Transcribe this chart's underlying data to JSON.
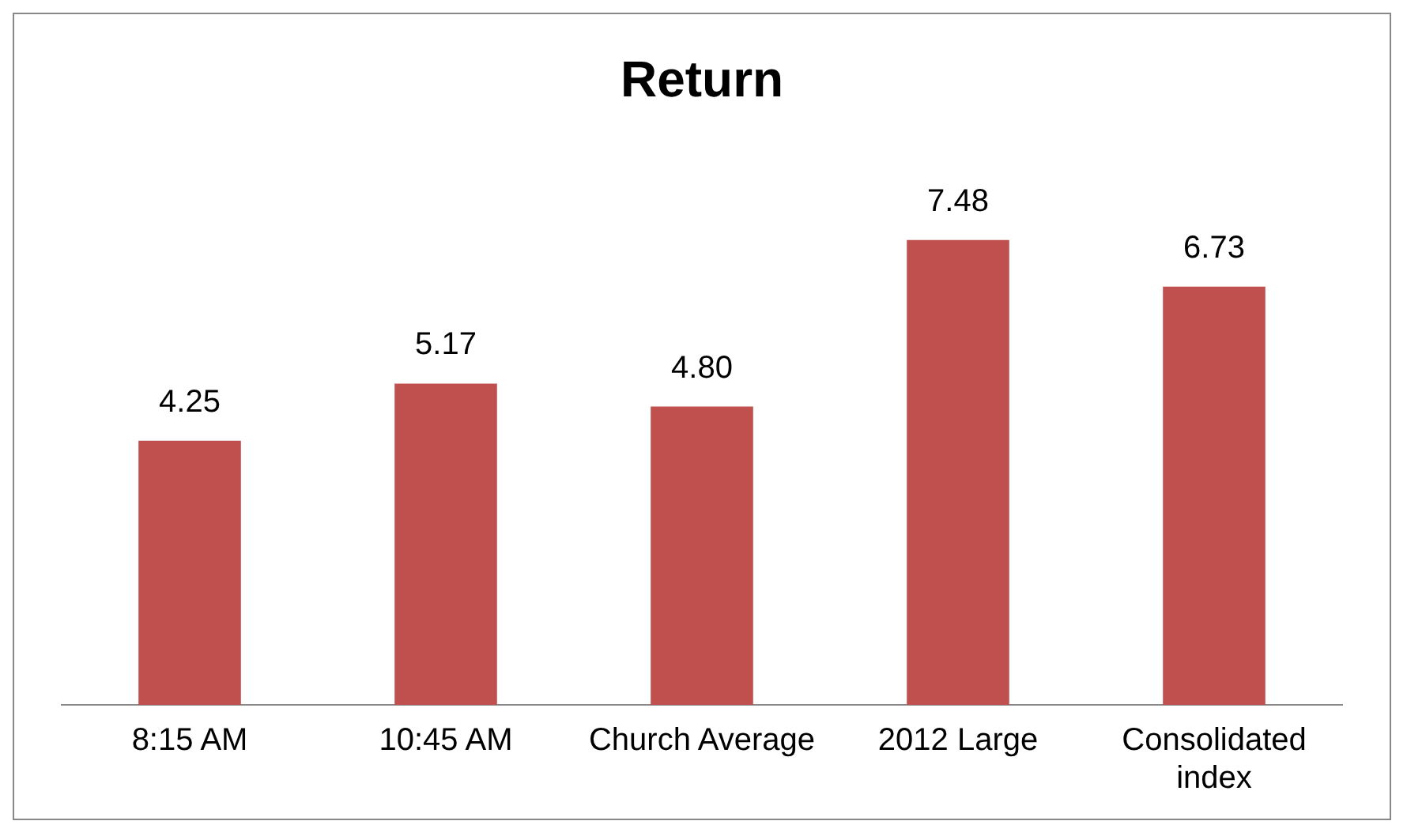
{
  "chart_data": {
    "type": "bar",
    "title": "Return",
    "categories": [
      "8:15 AM",
      "10:45 AM",
      "Church Average",
      "2012 Large",
      "Consolidated index"
    ],
    "values": [
      4.25,
      5.17,
      4.8,
      7.48,
      6.73
    ],
    "value_labels": [
      "4.25",
      "5.17",
      "4.80",
      "7.48",
      "6.73"
    ],
    "color": "#c0504d",
    "tick_labels": "x",
    "grid": false,
    "legend": false
  }
}
